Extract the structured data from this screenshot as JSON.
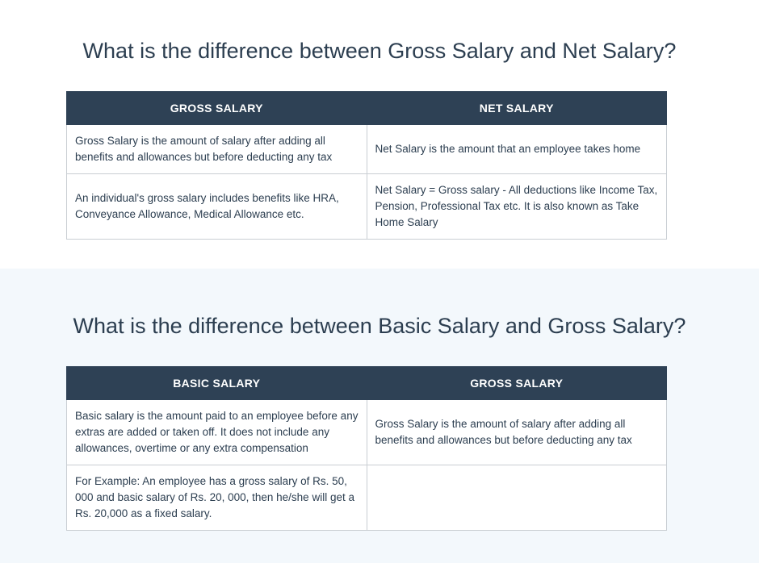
{
  "section1": {
    "title": "What is the difference between Gross Salary and Net Salary?",
    "headers": [
      "GROSS SALARY",
      "NET SALARY"
    ],
    "rows": [
      [
        "Gross Salary is the amount of salary after adding all benefits and allowances but before deducting any tax",
        "Net Salary is the amount that an employee takes home"
      ],
      [
        "An individual's gross salary includes benefits like HRA, Conveyance Allowance, Medical Allowance etc.",
        "Net Salary = Gross salary - All deductions like Income Tax, Pension, Professional Tax etc. It is also known as Take Home Salary"
      ]
    ]
  },
  "section2": {
    "title": "What is the difference between Basic Salary and Gross Salary?",
    "headers": [
      "BASIC SALARY",
      "GROSS SALARY"
    ],
    "rows": [
      [
        "Basic salary is the amount paid to an employee before any extras are added or taken off. It does not include any allowances, overtime or any extra compensation",
        "Gross Salary is the amount of salary after adding all benefits and allowances but before deducting any tax"
      ],
      [
        "For Example: An employee has a gross salary of Rs. 50, 000 and basic salary of Rs. 20, 000, then he/she will get a Rs. 20,000 as a fixed salary.",
        ""
      ]
    ]
  }
}
